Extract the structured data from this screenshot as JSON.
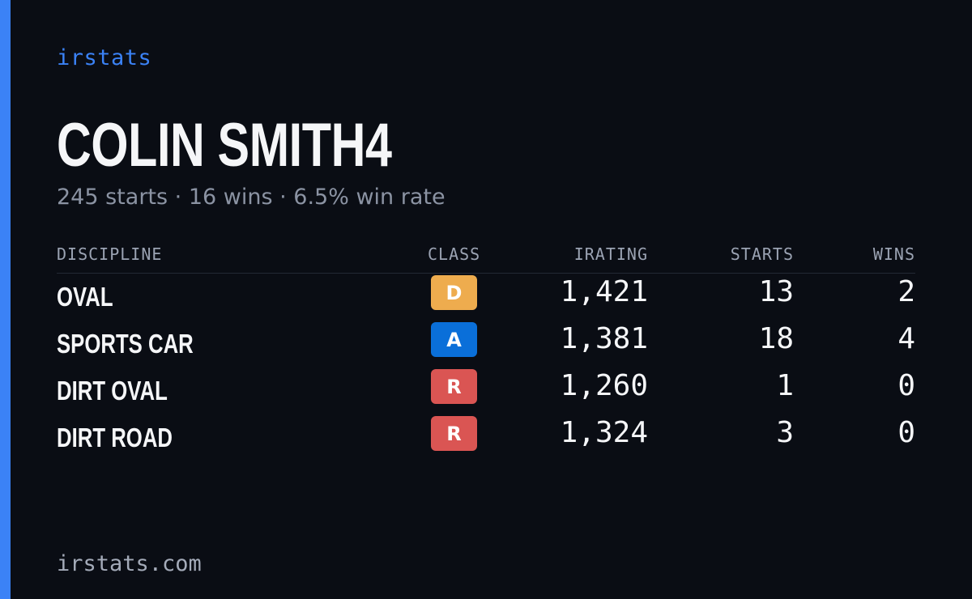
{
  "brand": "irstats",
  "driver": {
    "name": "COLIN SMITH4",
    "summary": "245 starts · 16 wins · 6.5% win rate"
  },
  "colors": {
    "accent": "#3b82f6",
    "background": "#0a0d14"
  },
  "table": {
    "headers": {
      "discipline": "DISCIPLINE",
      "class": "CLASS",
      "irating": "IRATING",
      "starts": "STARTS",
      "wins": "WINS"
    },
    "rows": [
      {
        "discipline": "OVAL",
        "class": "D",
        "class_color": "#eeac4e",
        "irating": "1,421",
        "starts": "13",
        "wins": "2"
      },
      {
        "discipline": "SPORTS CAR",
        "class": "A",
        "class_color": "#0a6fd9",
        "irating": "1,381",
        "starts": "18",
        "wins": "4"
      },
      {
        "discipline": "DIRT OVAL",
        "class": "R",
        "class_color": "#da5553",
        "irating": "1,260",
        "starts": "1",
        "wins": "0"
      },
      {
        "discipline": "DIRT ROAD",
        "class": "R",
        "class_color": "#da5553",
        "irating": "1,324",
        "starts": "3",
        "wins": "0"
      }
    ]
  },
  "footer": {
    "site": "irstats.com"
  }
}
